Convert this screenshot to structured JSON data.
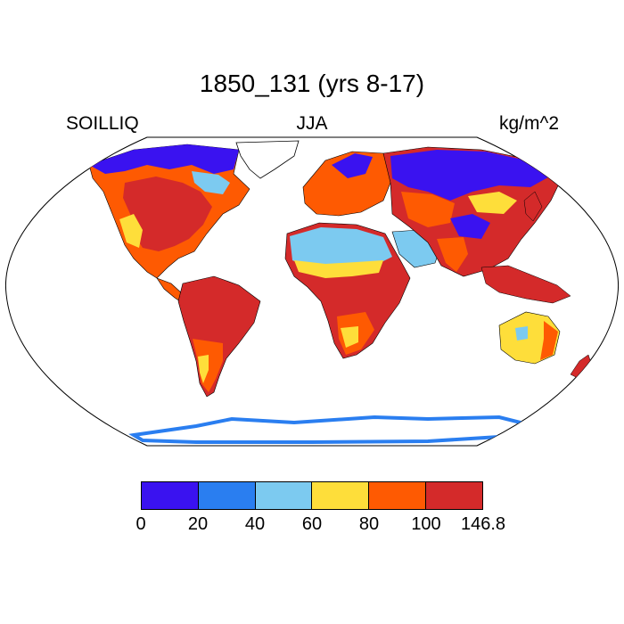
{
  "title": "1850_131 (yrs 8-17)",
  "left_label": "SOILLIQ",
  "center_label": "JJA",
  "right_label": "kg/m^2",
  "colorbar": {
    "colors": [
      "#3a12f0",
      "#2a7ef0",
      "#7ccaf0",
      "#fede3a",
      "#fe5a02",
      "#d42a2a"
    ],
    "labels": [
      "0",
      "20",
      "40",
      "60",
      "80",
      "100",
      "146.8"
    ]
  },
  "land_colors": {
    "ocean": "#ffffff",
    "ice": "#2a7ef0"
  }
}
